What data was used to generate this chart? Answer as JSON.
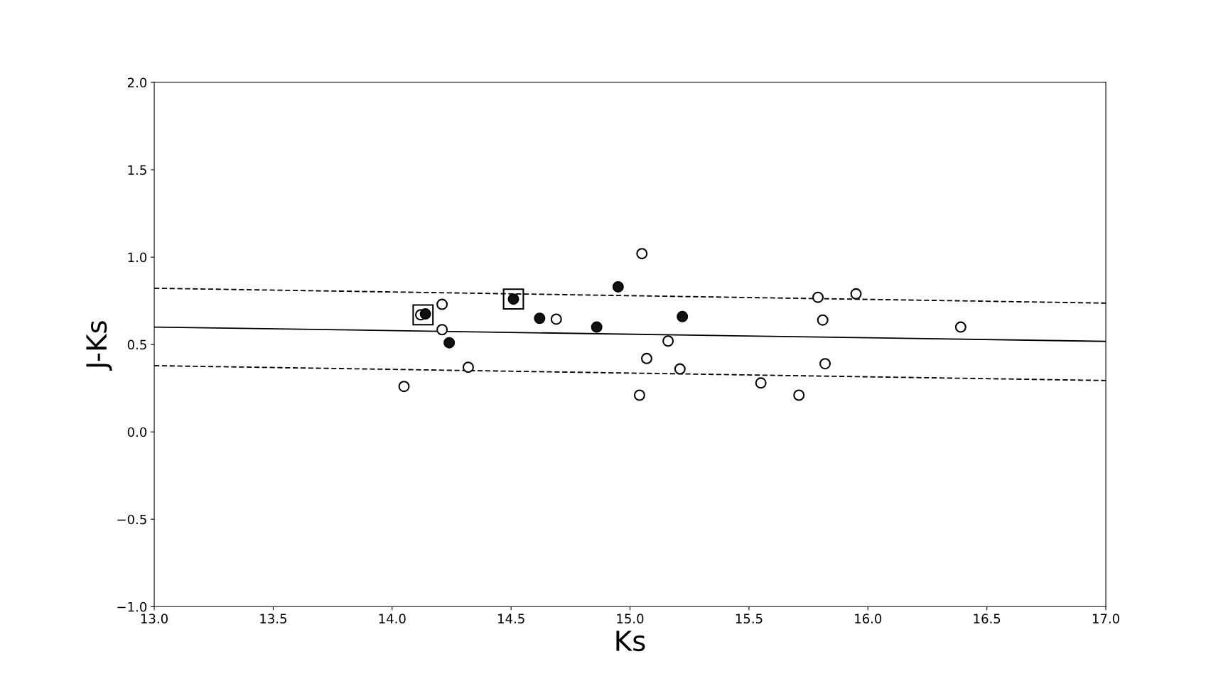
{
  "chart_data": {
    "type": "scatter",
    "xlabel": "Ks",
    "ylabel": "J-Ks",
    "xlim": [
      13.0,
      17.0
    ],
    "ylim": [
      -1.0,
      2.0
    ],
    "xticks": [
      {
        "value": 13.0,
        "label": "13.0"
      },
      {
        "value": 13.5,
        "label": "13.5"
      },
      {
        "value": 14.0,
        "label": "14.0"
      },
      {
        "value": 14.5,
        "label": "14.5"
      },
      {
        "value": 15.0,
        "label": "15.0"
      },
      {
        "value": 15.5,
        "label": "15.5"
      },
      {
        "value": 16.0,
        "label": "16.0"
      },
      {
        "value": 16.5,
        "label": "16.5"
      },
      {
        "value": 17.0,
        "label": "17.0"
      }
    ],
    "yticks": [
      {
        "value": -1.0,
        "label": "−1.0"
      },
      {
        "value": -0.5,
        "label": "−0.5"
      },
      {
        "value": 0.0,
        "label": "0.0"
      },
      {
        "value": 0.5,
        "label": "0.5"
      },
      {
        "value": 1.0,
        "label": "1.0"
      },
      {
        "value": 1.5,
        "label": "1.5"
      },
      {
        "value": 2.0,
        "label": "2.0"
      }
    ],
    "grid": false,
    "legend": false,
    "series": [
      {
        "type": "line",
        "line_style": "solid",
        "color": "#000000",
        "x": [
          13.0,
          17.0
        ],
        "values": [
          0.6,
          0.518
        ]
      },
      {
        "type": "line",
        "line_style": "dashed",
        "color": "#000000",
        "x": [
          13.0,
          17.0
        ],
        "values": [
          0.822,
          0.737
        ]
      },
      {
        "type": "line",
        "line_style": "dashed",
        "color": "#000000",
        "x": [
          13.0,
          17.0
        ],
        "values": [
          0.379,
          0.294
        ]
      },
      {
        "marker": "circle",
        "color": "#ffffff",
        "x": [
          14.05,
          14.12,
          14.21,
          14.21,
          14.32,
          14.69,
          15.05,
          15.04,
          15.07,
          15.16,
          15.21,
          15.55,
          15.71,
          15.79,
          15.81,
          15.82,
          15.95,
          16.39
        ],
        "values": [
          0.26,
          0.67,
          0.73,
          0.585,
          0.37,
          0.645,
          1.02,
          0.21,
          0.42,
          0.52,
          0.36,
          0.28,
          0.21,
          0.77,
          0.64,
          0.39,
          0.79,
          0.6
        ]
      },
      {
        "marker": "circle",
        "color": "#111111",
        "x": [
          14.14,
          14.24,
          14.51,
          14.62,
          14.86,
          14.95,
          15.22
        ],
        "values": [
          0.675,
          0.51,
          0.76,
          0.65,
          0.6,
          0.83,
          0.66
        ]
      },
      {
        "marker": "square",
        "color": "#000000",
        "x": [
          14.13,
          14.51
        ],
        "values": [
          0.67,
          0.76
        ]
      }
    ]
  }
}
